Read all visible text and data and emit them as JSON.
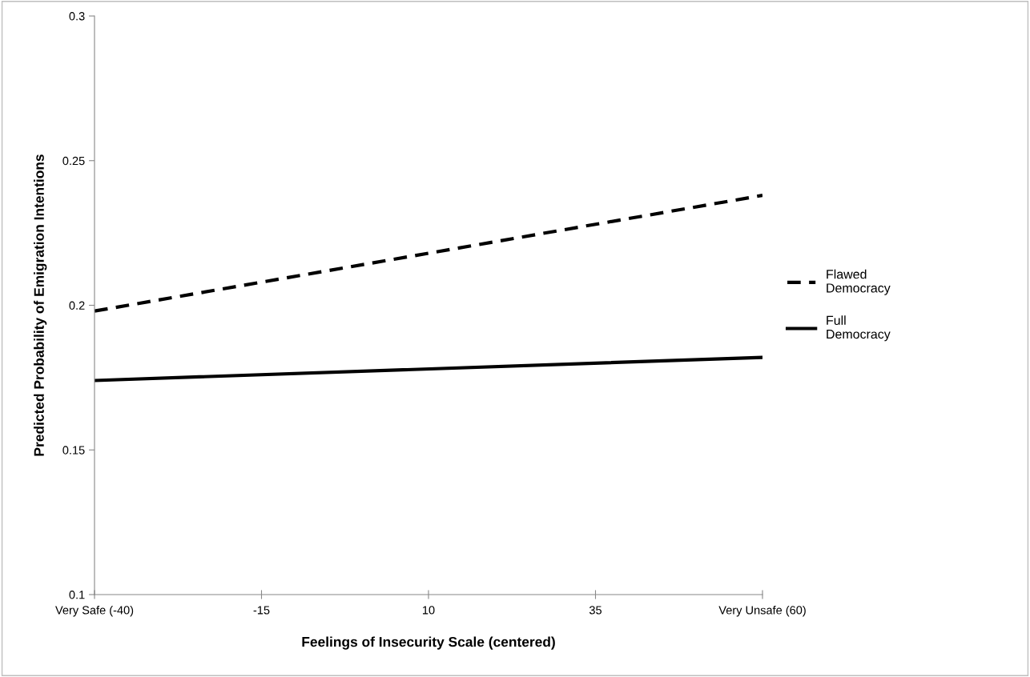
{
  "chart_data": {
    "type": "line",
    "xlabel": "Feelings of Insecurity Scale (centered)",
    "ylabel": "Predicted Probability of Emigration Intentions",
    "x": [
      -40,
      60
    ],
    "series": [
      {
        "name": "Flawed Democracy",
        "color": "#000000",
        "values": [
          0.198,
          0.238
        ],
        "line_style": "dashed"
      },
      {
        "name": "Full Democracy",
        "color": "#000000",
        "values": [
          0.174,
          0.182
        ],
        "line_style": "solid"
      }
    ],
    "xlim": [
      -40,
      60
    ],
    "xticks": [
      {
        "value": -40,
        "label": "Very Safe (-40)"
      },
      -15,
      10,
      35,
      {
        "value": 60,
        "label": "Very Unsafe (60)"
      }
    ],
    "ylim": [
      0.1,
      0.3
    ],
    "yticks": [
      {
        "value": 0.1,
        "label": "0.1"
      },
      {
        "value": 0.15,
        "label": "0.15"
      },
      {
        "value": 0.2,
        "label": "0.2"
      },
      {
        "value": 0.25,
        "label": "0.25"
      },
      {
        "value": 0.3,
        "label": "0.3"
      }
    ],
    "grid": false,
    "legend": "right",
    "marker": "none"
  }
}
